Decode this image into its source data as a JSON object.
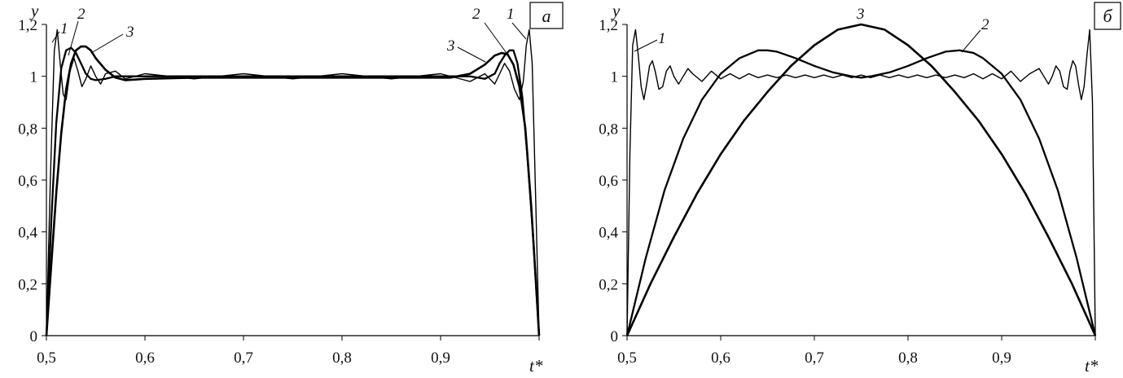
{
  "chart_data": [
    {
      "type": "line",
      "panel_label": "а",
      "xlabel": "t*",
      "ylabel": "y",
      "xlim": [
        0.5,
        1.0
      ],
      "ylim": [
        0,
        1.2
      ],
      "x_ticks": [
        "0,5",
        "0,6",
        "0,7",
        "0,8",
        "0,9",
        "1"
      ],
      "y_ticks": [
        "0",
        "0,2",
        "0,4",
        "0,6",
        "0,8",
        "1",
        "1,2"
      ],
      "series": [
        {
          "name": "1",
          "points": [
            [
              0.5,
              0
            ],
            [
              0.504,
              0.6
            ],
            [
              0.508,
              1.1
            ],
            [
              0.511,
              1.18
            ],
            [
              0.514,
              1.05
            ],
            [
              0.517,
              0.93
            ],
            [
              0.52,
              0.91
            ],
            [
              0.524,
              1.02
            ],
            [
              0.528,
              1.07
            ],
            [
              0.532,
              1.02
            ],
            [
              0.536,
              0.96
            ],
            [
              0.54,
              0.99
            ],
            [
              0.545,
              1.04
            ],
            [
              0.55,
              1.0
            ],
            [
              0.555,
              0.97
            ],
            [
              0.56,
              1.01
            ],
            [
              0.57,
              1.02
            ],
            [
              0.58,
              0.99
            ],
            [
              0.6,
              1.01
            ],
            [
              0.65,
              0.99
            ],
            [
              0.7,
              1.01
            ],
            [
              0.75,
              0.99
            ],
            [
              0.8,
              1.01
            ],
            [
              0.85,
              0.99
            ],
            [
              0.9,
              1.01
            ],
            [
              0.93,
              0.98
            ],
            [
              0.945,
              1.01
            ],
            [
              0.955,
              0.97
            ],
            [
              0.96,
              1.01
            ],
            [
              0.965,
              1.05
            ],
            [
              0.97,
              1.02
            ],
            [
              0.975,
              0.95
            ],
            [
              0.98,
              0.91
            ],
            [
              0.984,
              0.98
            ],
            [
              0.987,
              1.12
            ],
            [
              0.99,
              1.18
            ],
            [
              0.993,
              1.05
            ],
            [
              0.996,
              0.6
            ],
            [
              1.0,
              0
            ]
          ]
        },
        {
          "name": "2",
          "points": [
            [
              0.5,
              0
            ],
            [
              0.505,
              0.45
            ],
            [
              0.51,
              0.82
            ],
            [
              0.515,
              1.03
            ],
            [
              0.52,
              1.1
            ],
            [
              0.525,
              1.11
            ],
            [
              0.53,
              1.09
            ],
            [
              0.535,
              1.05
            ],
            [
              0.54,
              1.01
            ],
            [
              0.545,
              0.99
            ],
            [
              0.55,
              0.985
            ],
            [
              0.56,
              0.99
            ],
            [
              0.57,
              1.0
            ],
            [
              0.6,
              1.0
            ],
            [
              0.9,
              1.0
            ],
            [
              0.93,
              1.0
            ],
            [
              0.945,
              0.99
            ],
            [
              0.955,
              1.01
            ],
            [
              0.96,
              1.05
            ],
            [
              0.965,
              1.08
            ],
            [
              0.97,
              1.1
            ],
            [
              0.974,
              1.1
            ],
            [
              0.978,
              1.05
            ],
            [
              0.983,
              0.92
            ],
            [
              0.988,
              0.7
            ],
            [
              0.994,
              0.38
            ],
            [
              1.0,
              0
            ]
          ]
        },
        {
          "name": "3",
          "points": [
            [
              0.5,
              0
            ],
            [
              0.505,
              0.28
            ],
            [
              0.51,
              0.55
            ],
            [
              0.515,
              0.78
            ],
            [
              0.52,
              0.95
            ],
            [
              0.525,
              1.05
            ],
            [
              0.53,
              1.1
            ],
            [
              0.535,
              1.115
            ],
            [
              0.54,
              1.115
            ],
            [
              0.545,
              1.1
            ],
            [
              0.55,
              1.07
            ],
            [
              0.56,
              1.025
            ],
            [
              0.57,
              0.995
            ],
            [
              0.58,
              0.985
            ],
            [
              0.6,
              0.99
            ],
            [
              0.65,
              0.995
            ],
            [
              0.7,
              0.995
            ],
            [
              0.8,
              0.995
            ],
            [
              0.88,
              0.995
            ],
            [
              0.91,
              0.995
            ],
            [
              0.93,
              1.01
            ],
            [
              0.945,
              1.045
            ],
            [
              0.955,
              1.08
            ],
            [
              0.962,
              1.09
            ],
            [
              0.968,
              1.085
            ],
            [
              0.974,
              1.045
            ],
            [
              0.98,
              0.96
            ],
            [
              0.986,
              0.8
            ],
            [
              0.992,
              0.5
            ],
            [
              0.996,
              0.25
            ],
            [
              1.0,
              0
            ]
          ]
        }
      ],
      "curve_labels": [
        "1",
        "2",
        "3",
        "3",
        "2",
        "1"
      ]
    },
    {
      "type": "line",
      "panel_label": "б",
      "xlabel": "t*",
      "ylabel": "y",
      "xlim": [
        0.5,
        1.0
      ],
      "ylim": [
        0,
        1.2
      ],
      "x_ticks": [
        "0,5",
        "0,6",
        "0,7",
        "0,8",
        "0,9",
        "1"
      ],
      "y_ticks": [
        "0",
        "0,2",
        "0,4",
        "0,6",
        "0,8",
        "1",
        "1,2"
      ],
      "series": [
        {
          "name": "1",
          "points": [
            [
              0.5,
              0
            ],
            [
              0.503,
              0.7
            ],
            [
              0.506,
              1.12
            ],
            [
              0.509,
              1.18
            ],
            [
              0.512,
              1.08
            ],
            [
              0.515,
              0.96
            ],
            [
              0.518,
              0.91
            ],
            [
              0.521,
              0.97
            ],
            [
              0.524,
              1.04
            ],
            [
              0.527,
              1.06
            ],
            [
              0.53,
              1.02
            ],
            [
              0.534,
              0.95
            ],
            [
              0.538,
              0.96
            ],
            [
              0.542,
              1.02
            ],
            [
              0.546,
              1.04
            ],
            [
              0.55,
              1.0
            ],
            [
              0.555,
              0.97
            ],
            [
              0.56,
              1.0
            ],
            [
              0.565,
              1.03
            ],
            [
              0.57,
              1.01
            ],
            [
              0.58,
              0.98
            ],
            [
              0.59,
              1.02
            ],
            [
              0.6,
              0.99
            ],
            [
              0.61,
              1.01
            ],
            [
              0.62,
              0.99
            ],
            [
              0.63,
              1.01
            ],
            [
              0.64,
              0.995
            ],
            [
              0.65,
              1.005
            ],
            [
              0.66,
              0.995
            ],
            [
              0.67,
              1.005
            ],
            [
              0.68,
              0.995
            ],
            [
              0.69,
              1.005
            ],
            [
              0.7,
              0.995
            ],
            [
              0.71,
              1.005
            ],
            [
              0.72,
              0.995
            ],
            [
              0.73,
              1.005
            ],
            [
              0.74,
              0.995
            ],
            [
              0.75,
              1.005
            ],
            [
              0.76,
              0.995
            ],
            [
              0.77,
              1.005
            ],
            [
              0.78,
              0.995
            ],
            [
              0.79,
              1.005
            ],
            [
              0.8,
              0.995
            ],
            [
              0.81,
              1.005
            ],
            [
              0.82,
              0.995
            ],
            [
              0.83,
              1.005
            ],
            [
              0.84,
              0.995
            ],
            [
              0.85,
              1.005
            ],
            [
              0.86,
              0.995
            ],
            [
              0.87,
              1.01
            ],
            [
              0.88,
              0.99
            ],
            [
              0.89,
              1.01
            ],
            [
              0.9,
              0.99
            ],
            [
              0.91,
              1.02
            ],
            [
              0.92,
              0.98
            ],
            [
              0.93,
              1.01
            ],
            [
              0.94,
              1.03
            ],
            [
              0.945,
              1.0
            ],
            [
              0.95,
              0.97
            ],
            [
              0.954,
              1.0
            ],
            [
              0.958,
              1.04
            ],
            [
              0.962,
              1.02
            ],
            [
              0.966,
              0.96
            ],
            [
              0.97,
              0.95
            ],
            [
              0.973,
              1.02
            ],
            [
              0.976,
              1.06
            ],
            [
              0.979,
              1.04
            ],
            [
              0.982,
              0.97
            ],
            [
              0.985,
              0.91
            ],
            [
              0.988,
              0.96
            ],
            [
              0.991,
              1.08
            ],
            [
              0.994,
              1.18
            ],
            [
              0.997,
              0.9
            ],
            [
              1.0,
              0
            ]
          ]
        },
        {
          "name": "2",
          "points": [
            [
              0.5,
              0
            ],
            [
              0.52,
              0.3
            ],
            [
              0.54,
              0.56
            ],
            [
              0.56,
              0.76
            ],
            [
              0.58,
              0.91
            ],
            [
              0.6,
              1.01
            ],
            [
              0.62,
              1.07
            ],
            [
              0.64,
              1.1
            ],
            [
              0.65,
              1.1
            ],
            [
              0.66,
              1.095
            ],
            [
              0.68,
              1.07
            ],
            [
              0.7,
              1.04
            ],
            [
              0.72,
              1.015
            ],
            [
              0.74,
              1.0
            ],
            [
              0.75,
              0.995
            ],
            [
              0.76,
              1.0
            ],
            [
              0.78,
              1.015
            ],
            [
              0.8,
              1.04
            ],
            [
              0.82,
              1.07
            ],
            [
              0.84,
              1.095
            ],
            [
              0.855,
              1.1
            ],
            [
              0.87,
              1.09
            ],
            [
              0.88,
              1.07
            ],
            [
              0.9,
              1.01
            ],
            [
              0.92,
              0.91
            ],
            [
              0.94,
              0.76
            ],
            [
              0.96,
              0.56
            ],
            [
              0.98,
              0.3
            ],
            [
              1.0,
              0
            ]
          ]
        },
        {
          "name": "3",
          "points": [
            [
              0.5,
              0
            ],
            [
              0.525,
              0.2
            ],
            [
              0.55,
              0.38
            ],
            [
              0.575,
              0.55
            ],
            [
              0.6,
              0.7
            ],
            [
              0.625,
              0.83
            ],
            [
              0.65,
              0.94
            ],
            [
              0.675,
              1.04
            ],
            [
              0.7,
              1.12
            ],
            [
              0.725,
              1.18
            ],
            [
              0.75,
              1.2
            ],
            [
              0.775,
              1.18
            ],
            [
              0.8,
              1.12
            ],
            [
              0.825,
              1.04
            ],
            [
              0.85,
              0.94
            ],
            [
              0.875,
              0.83
            ],
            [
              0.9,
              0.7
            ],
            [
              0.925,
              0.55
            ],
            [
              0.95,
              0.38
            ],
            [
              0.975,
              0.2
            ],
            [
              1.0,
              0
            ]
          ]
        }
      ],
      "curve_labels": [
        "1",
        "3",
        "2"
      ]
    }
  ]
}
